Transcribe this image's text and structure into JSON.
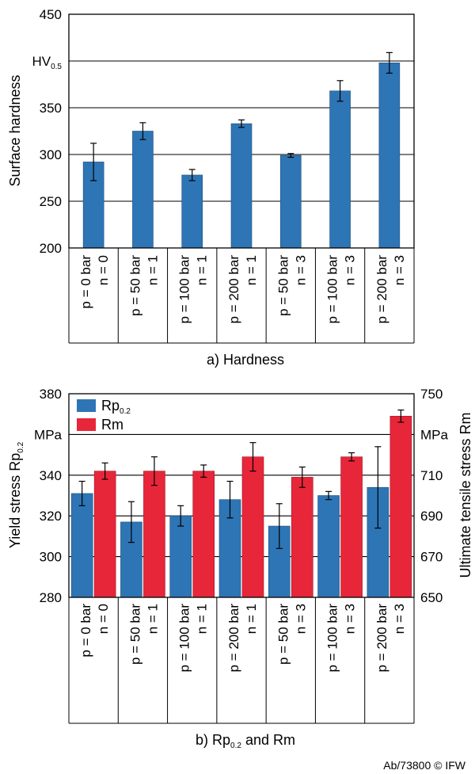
{
  "chart_data": [
    {
      "type": "bar",
      "categories": [
        [
          "p = 0 bar",
          "n = 0"
        ],
        [
          "p = 50 bar",
          "n = 1"
        ],
        [
          "p = 100 bar",
          "n = 1"
        ],
        [
          "p = 200 bar",
          "n = 1"
        ],
        [
          "p = 50 bar",
          "n = 3"
        ],
        [
          "p = 100 bar",
          "n = 3"
        ],
        [
          "p = 200 bar",
          "n = 3"
        ]
      ],
      "series": [
        {
          "values": [
            292,
            325,
            278,
            333,
            299,
            368,
            398
          ],
          "err": [
            20,
            9,
            6,
            4,
            2,
            11,
            11
          ],
          "color": "#2E75B6"
        }
      ],
      "ylabel": "Surface hardness",
      "unit_main": "HV",
      "unit_sub": "0.5",
      "ylim": [
        200,
        450
      ],
      "yticks": [
        "450",
        "",
        "350",
        "300",
        "250",
        "200"
      ],
      "grid": true,
      "caption": "a) Hardness"
    },
    {
      "type": "bar",
      "categories": [
        [
          "p = 0 bar",
          "n = 0"
        ],
        [
          "p = 50 bar",
          "n = 1"
        ],
        [
          "p = 100 bar",
          "n = 1"
        ],
        [
          "p = 200 bar",
          "n = 1"
        ],
        [
          "p = 50 bar",
          "n = 3"
        ],
        [
          "p = 100 bar",
          "n = 3"
        ],
        [
          "p = 200 bar",
          "n = 3"
        ]
      ],
      "series": [
        {
          "name_main": "Rp",
          "name_sub": "0.2",
          "axis": "left",
          "values": [
            331,
            317,
            320,
            328,
            315,
            330,
            334
          ],
          "err": [
            6,
            10,
            5,
            9,
            11,
            2,
            20
          ],
          "color": "#2E75B6"
        },
        {
          "name_main": "Rm",
          "axis": "right",
          "values": [
            712,
            712,
            712,
            719,
            709,
            719,
            739
          ],
          "err": [
            4,
            7,
            3,
            7,
            5,
            2,
            3
          ],
          "color": "#E8263A"
        }
      ],
      "ylabel_main": "Yield stress Rp",
      "ylabel_sub": "0.2",
      "y2label": "Ultimate tensile stress Rm",
      "ylim": [
        280,
        380
      ],
      "yticks": [
        "380",
        "MPa",
        "340",
        "320",
        "300",
        "280"
      ],
      "y2lim": [
        650,
        750
      ],
      "y2ticks": [
        "750",
        "MPa",
        "710",
        "690",
        "670",
        "650"
      ],
      "grid": true,
      "legend": "top-left",
      "caption_main": "b) Rp",
      "caption_sub": "0.2",
      "caption_rest": " and Rm"
    }
  ],
  "footer": "Ab/73800 © IFW"
}
